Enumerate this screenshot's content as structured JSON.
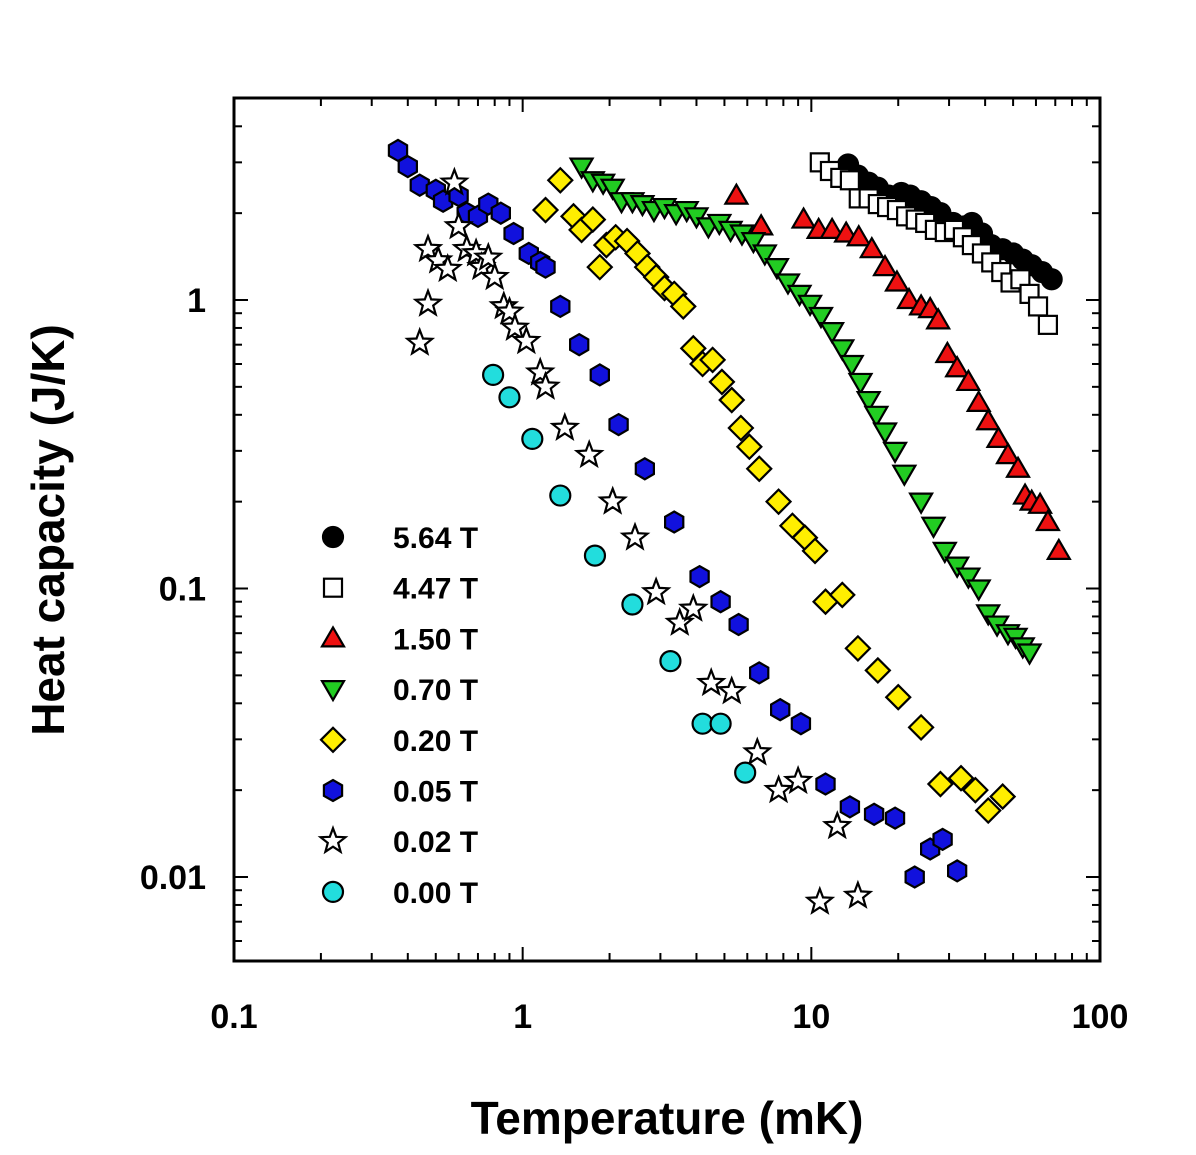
{
  "chart_data": {
    "type": "scatter",
    "title": "",
    "xlabel": "Temperature  (mK)",
    "ylabel": "Heat capacity  (J/K)",
    "xscale": "log",
    "yscale": "log",
    "xlim": [
      0.1,
      100
    ],
    "ylim": [
      0.005,
      5
    ],
    "x_ticks": [
      {
        "value": 0.1,
        "label": "0.1"
      },
      {
        "value": 1,
        "label": "1"
      },
      {
        "value": 10,
        "label": "10"
      },
      {
        "value": 100,
        "label": "100"
      }
    ],
    "y_ticks": [
      {
        "value": 0.01,
        "label": "0.01"
      },
      {
        "value": 0.1,
        "label": "0.1"
      },
      {
        "value": 1,
        "label": "1"
      }
    ],
    "legend_position": "lower-left",
    "series": [
      {
        "name": "5.64 T",
        "marker": "circle",
        "fill": "#000000",
        "points": [
          [
            13.4,
            2.95
          ],
          [
            14.5,
            2.7
          ],
          [
            15.8,
            2.55
          ],
          [
            17.0,
            2.45
          ],
          [
            18.5,
            2.3
          ],
          [
            20.5,
            2.35
          ],
          [
            22.0,
            2.3
          ],
          [
            24.0,
            2.2
          ],
          [
            26.0,
            2.1
          ],
          [
            28.0,
            2.0
          ],
          [
            31.0,
            1.85
          ],
          [
            34.0,
            1.8
          ],
          [
            36.0,
            1.85
          ],
          [
            39.0,
            1.7
          ],
          [
            42.0,
            1.55
          ],
          [
            46.0,
            1.5
          ],
          [
            50.0,
            1.45
          ],
          [
            54.0,
            1.38
          ],
          [
            58.0,
            1.32
          ],
          [
            63.0,
            1.25
          ],
          [
            68.0,
            1.18
          ]
        ]
      },
      {
        "name": "4.47 T",
        "marker": "square",
        "fill": "#ffffff",
        "points": [
          [
            10.7,
            3.0
          ],
          [
            11.6,
            2.8
          ],
          [
            12.6,
            2.65
          ],
          [
            13.6,
            2.6
          ],
          [
            14.6,
            2.25
          ],
          [
            15.8,
            2.25
          ],
          [
            17.0,
            2.15
          ],
          [
            18.3,
            2.1
          ],
          [
            19.8,
            2.05
          ],
          [
            21.3,
            1.95
          ],
          [
            23.0,
            1.9
          ],
          [
            24.8,
            1.85
          ],
          [
            26.8,
            1.75
          ],
          [
            29.0,
            1.72
          ],
          [
            31.2,
            1.75
          ],
          [
            33.5,
            1.65
          ],
          [
            36.0,
            1.55
          ],
          [
            39.0,
            1.45
          ],
          [
            42.0,
            1.35
          ],
          [
            45.5,
            1.25
          ],
          [
            49.0,
            1.15
          ],
          [
            53.0,
            1.18
          ],
          [
            57.0,
            1.05
          ],
          [
            61.0,
            0.95
          ],
          [
            66.0,
            0.82
          ]
        ]
      },
      {
        "name": "1.50 T",
        "marker": "triangle-up",
        "fill": "#ee1111",
        "points": [
          [
            5.5,
            2.3
          ],
          [
            6.7,
            1.8
          ],
          [
            9.4,
            1.9
          ],
          [
            10.6,
            1.75
          ],
          [
            11.8,
            1.75
          ],
          [
            13.2,
            1.7
          ],
          [
            14.6,
            1.65
          ],
          [
            16.2,
            1.5
          ],
          [
            18.0,
            1.3
          ],
          [
            19.8,
            1.15
          ],
          [
            21.8,
            1.0
          ],
          [
            24.0,
            0.95
          ],
          [
            25.8,
            0.93
          ],
          [
            27.5,
            0.85
          ],
          [
            29.6,
            0.65
          ],
          [
            32.0,
            0.58
          ],
          [
            35.0,
            0.52
          ],
          [
            38.0,
            0.44
          ],
          [
            41.0,
            0.38
          ],
          [
            44.5,
            0.33
          ],
          [
            48.0,
            0.29
          ],
          [
            52.0,
            0.26
          ],
          [
            55.0,
            0.21
          ],
          [
            58.0,
            0.2
          ],
          [
            62.0,
            0.195
          ],
          [
            66.0,
            0.17
          ],
          [
            72.0,
            0.135
          ]
        ]
      },
      {
        "name": "0.70 T",
        "marker": "triangle-down",
        "fill": "#22cc22",
        "points": [
          [
            1.6,
            2.9
          ],
          [
            1.75,
            2.6
          ],
          [
            1.9,
            2.55
          ],
          [
            2.05,
            2.45
          ],
          [
            2.2,
            2.2
          ],
          [
            2.4,
            2.2
          ],
          [
            2.6,
            2.15
          ],
          [
            2.85,
            2.05
          ],
          [
            3.1,
            2.1
          ],
          [
            3.4,
            2.0
          ],
          [
            3.7,
            2.05
          ],
          [
            4.0,
            1.95
          ],
          [
            4.4,
            1.8
          ],
          [
            4.8,
            1.85
          ],
          [
            5.25,
            1.75
          ],
          [
            5.75,
            1.7
          ],
          [
            6.3,
            1.6
          ],
          [
            6.9,
            1.45
          ],
          [
            7.6,
            1.3
          ],
          [
            8.3,
            1.15
          ],
          [
            9.1,
            1.05
          ],
          [
            9.9,
            0.97
          ],
          [
            10.8,
            0.88
          ],
          [
            11.8,
            0.78
          ],
          [
            12.8,
            0.68
          ],
          [
            13.8,
            0.6
          ],
          [
            14.8,
            0.52
          ],
          [
            15.8,
            0.45
          ],
          [
            16.8,
            0.4
          ],
          [
            18.0,
            0.35
          ],
          [
            19.5,
            0.3
          ],
          [
            21.0,
            0.25
          ],
          [
            24.0,
            0.2
          ],
          [
            26.5,
            0.165
          ],
          [
            29.0,
            0.135
          ],
          [
            32.0,
            0.12
          ],
          [
            35.0,
            0.11
          ],
          [
            38.0,
            0.1
          ],
          [
            41.0,
            0.082
          ],
          [
            44.0,
            0.075
          ],
          [
            48.0,
            0.07
          ],
          [
            51.0,
            0.068
          ],
          [
            54.0,
            0.063
          ],
          [
            57.0,
            0.06
          ]
        ]
      },
      {
        "name": "0.20 T",
        "marker": "diamond",
        "fill": "#ffee00",
        "points": [
          [
            1.2,
            2.05
          ],
          [
            1.35,
            2.6
          ],
          [
            1.5,
            1.95
          ],
          [
            1.6,
            1.75
          ],
          [
            1.75,
            1.9
          ],
          [
            1.85,
            1.3
          ],
          [
            1.95,
            1.55
          ],
          [
            2.1,
            1.65
          ],
          [
            2.3,
            1.6
          ],
          [
            2.5,
            1.45
          ],
          [
            2.7,
            1.3
          ],
          [
            2.9,
            1.2
          ],
          [
            3.1,
            1.1
          ],
          [
            3.35,
            1.05
          ],
          [
            3.6,
            0.95
          ],
          [
            3.9,
            0.68
          ],
          [
            4.2,
            0.6
          ],
          [
            4.55,
            0.62
          ],
          [
            4.9,
            0.52
          ],
          [
            5.3,
            0.45
          ],
          [
            5.7,
            0.36
          ],
          [
            6.1,
            0.31
          ],
          [
            6.6,
            0.26
          ],
          [
            7.7,
            0.2
          ],
          [
            8.6,
            0.165
          ],
          [
            9.5,
            0.15
          ],
          [
            10.3,
            0.135
          ],
          [
            11.2,
            0.09
          ],
          [
            12.8,
            0.095
          ],
          [
            14.5,
            0.062
          ],
          [
            17.0,
            0.052
          ],
          [
            20.0,
            0.042
          ],
          [
            24.0,
            0.033
          ],
          [
            28.0,
            0.021
          ],
          [
            33.0,
            0.022
          ],
          [
            37.0,
            0.02
          ],
          [
            41.0,
            0.017
          ],
          [
            46.0,
            0.019
          ]
        ]
      },
      {
        "name": "0.05 T",
        "marker": "hexagon",
        "fill": "#1111dd",
        "points": [
          [
            0.37,
            3.3
          ],
          [
            0.4,
            2.9
          ],
          [
            0.44,
            2.5
          ],
          [
            0.5,
            2.4
          ],
          [
            0.53,
            2.2
          ],
          [
            0.6,
            2.3
          ],
          [
            0.64,
            2.0
          ],
          [
            0.7,
            1.95
          ],
          [
            0.76,
            2.15
          ],
          [
            0.84,
            2.0
          ],
          [
            0.93,
            1.7
          ],
          [
            1.05,
            1.45
          ],
          [
            1.15,
            1.35
          ],
          [
            1.2,
            1.3
          ],
          [
            1.35,
            0.95
          ],
          [
            1.57,
            0.7
          ],
          [
            1.85,
            0.55
          ],
          [
            2.15,
            0.37
          ],
          [
            2.65,
            0.26
          ],
          [
            3.35,
            0.17
          ],
          [
            4.1,
            0.11
          ],
          [
            4.85,
            0.09
          ],
          [
            5.6,
            0.075
          ],
          [
            6.6,
            0.051
          ],
          [
            7.8,
            0.038
          ],
          [
            9.2,
            0.034
          ],
          [
            11.2,
            0.021
          ],
          [
            13.6,
            0.0175
          ],
          [
            16.5,
            0.0165
          ],
          [
            19.5,
            0.016
          ],
          [
            22.8,
            0.01
          ],
          [
            25.8,
            0.0125
          ],
          [
            28.5,
            0.0135
          ],
          [
            32.0,
            0.0105
          ]
        ]
      },
      {
        "name": "0.02 T",
        "marker": "star",
        "fill": "#ffffff",
        "points": [
          [
            0.44,
            0.71
          ],
          [
            0.47,
            0.97
          ],
          [
            0.47,
            1.5
          ],
          [
            0.51,
            1.37
          ],
          [
            0.55,
            1.28
          ],
          [
            0.58,
            2.55
          ],
          [
            0.6,
            1.8
          ],
          [
            0.64,
            1.5
          ],
          [
            0.69,
            1.45
          ],
          [
            0.72,
            1.3
          ],
          [
            0.76,
            1.4
          ],
          [
            0.8,
            1.2
          ],
          [
            0.86,
            0.95
          ],
          [
            0.9,
            0.91
          ],
          [
            0.94,
            0.8
          ],
          [
            1.03,
            0.72
          ],
          [
            1.15,
            0.56
          ],
          [
            1.2,
            0.5
          ],
          [
            1.4,
            0.36
          ],
          [
            1.7,
            0.29
          ],
          [
            2.05,
            0.2
          ],
          [
            2.45,
            0.15
          ],
          [
            2.9,
            0.097
          ],
          [
            3.5,
            0.076
          ],
          [
            3.9,
            0.085
          ],
          [
            4.5,
            0.047
          ],
          [
            5.3,
            0.044
          ],
          [
            6.5,
            0.027
          ],
          [
            7.7,
            0.02
          ],
          [
            9.0,
            0.0215
          ],
          [
            10.7,
            0.0082
          ],
          [
            12.3,
            0.015
          ],
          [
            14.5,
            0.0086
          ]
        ]
      },
      {
        "name": "0.00 T",
        "marker": "circle",
        "fill": "#22dddd",
        "points": [
          [
            0.79,
            0.55
          ],
          [
            0.9,
            0.46
          ],
          [
            1.08,
            0.33
          ],
          [
            1.35,
            0.21
          ],
          [
            1.78,
            0.13
          ],
          [
            2.4,
            0.088
          ],
          [
            3.25,
            0.056
          ],
          [
            4.2,
            0.034
          ],
          [
            4.85,
            0.034
          ],
          [
            5.9,
            0.023
          ]
        ]
      }
    ]
  }
}
